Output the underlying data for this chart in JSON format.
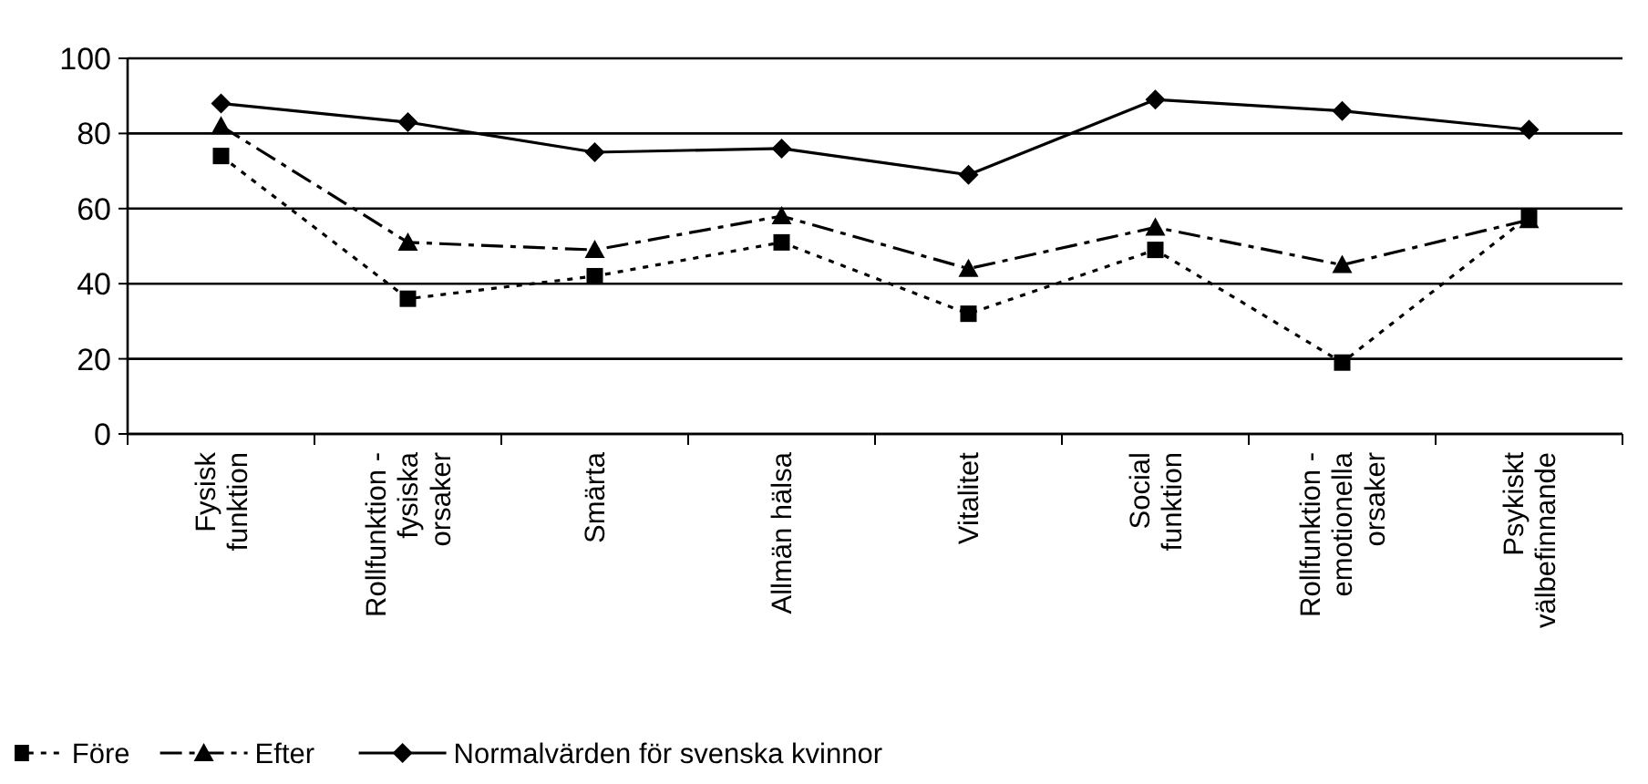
{
  "chart_data": {
    "type": "line",
    "categories": [
      "Fysisk\nfunktion",
      "Rollfunktion -\nfysiska\norsaker",
      "Smärta",
      "Allmän hälsa",
      "Vitalitet",
      "Social\nfunktion",
      "Rollfunktion -\nemotionella\norsaker",
      "Psykiskt\nvälbefinnande"
    ],
    "series": [
      {
        "name": "Före",
        "color": "#000000",
        "marker": "square",
        "line_style": "dotted",
        "values": [
          74,
          36,
          42,
          51,
          32,
          49,
          19,
          58
        ]
      },
      {
        "name": "Efter",
        "color": "#000000",
        "marker": "triangle",
        "line_style": "dashed",
        "values": [
          82,
          51,
          49,
          58,
          44,
          55,
          45,
          57
        ]
      },
      {
        "name": "Normalvärden för svenska kvinnor",
        "color": "#000000",
        "marker": "diamond",
        "line_style": "solid",
        "values": [
          88,
          83,
          75,
          76,
          69,
          89,
          86,
          81
        ]
      }
    ],
    "ylim": [
      0,
      100
    ],
    "yticks": [
      0,
      20,
      40,
      60,
      80,
      100
    ],
    "grid": "y",
    "legend": "bottom"
  }
}
